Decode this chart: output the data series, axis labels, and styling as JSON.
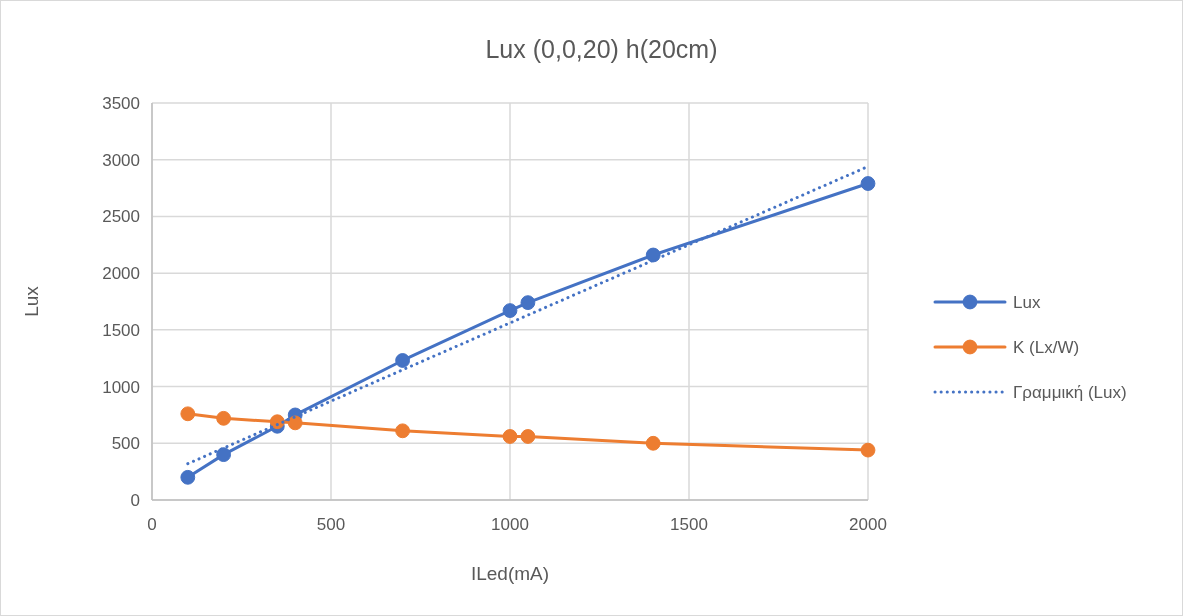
{
  "chart_data": {
    "type": "line",
    "title": "Lux (0,0,20) h(20cm)",
    "xlabel": "ILed(mA)",
    "ylabel": "Lux",
    "x": [
      100,
      200,
      350,
      400,
      700,
      1000,
      1050,
      1400,
      2000
    ],
    "series": [
      {
        "name": "Lux",
        "color": "#4472c4",
        "values": [
          200,
          400,
          650,
          750,
          1230,
          1670,
          1740,
          2160,
          2790
        ]
      },
      {
        "name": "K (Lx/W)",
        "color": "#ed7d31",
        "values": [
          760,
          720,
          690,
          680,
          610,
          560,
          560,
          500,
          440
        ]
      },
      {
        "name": "Γραμμική (Lux)",
        "type": "line",
        "color": "#4472c4",
        "x": [
          100,
          2000
        ],
        "values": [
          320,
          2940
        ],
        "line_style": "dotted",
        "marker": "none"
      }
    ],
    "xlim": [
      0,
      2000
    ],
    "xticks": [
      0,
      500,
      1000,
      1500,
      2000
    ],
    "ylim": [
      0,
      3500
    ],
    "yticks": [
      0,
      500,
      1000,
      1500,
      2000,
      2500,
      3000,
      3500
    ],
    "grid": true,
    "legend": "right",
    "marker": "circle",
    "line_style": "solid"
  }
}
